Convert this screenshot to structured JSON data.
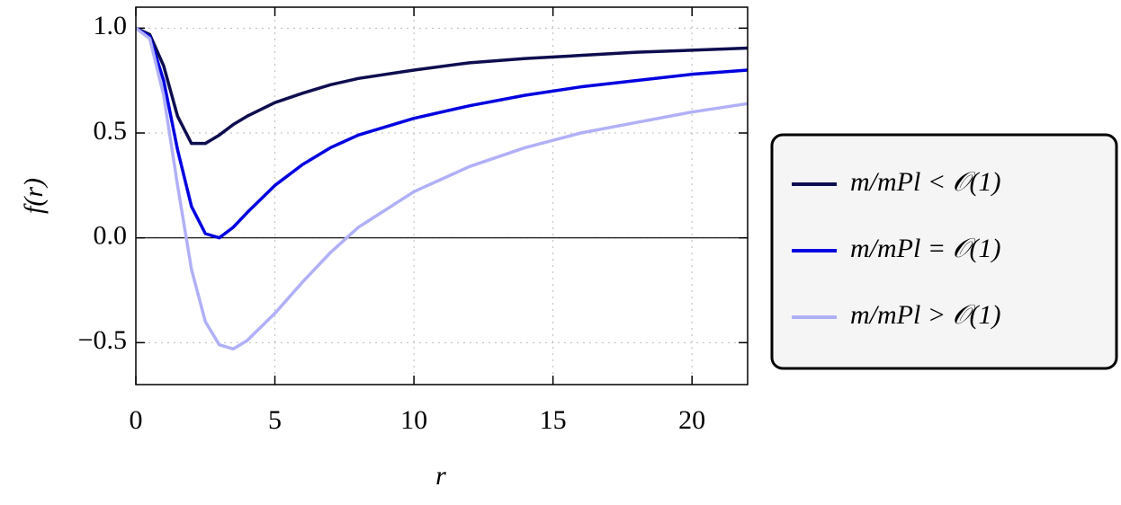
{
  "chart_data": {
    "type": "line",
    "xlabel": "r",
    "ylabel": "f(r)",
    "x": [
      0,
      0.5,
      1,
      1.5,
      2,
      2.5,
      3,
      3.5,
      4,
      5,
      6,
      7,
      8,
      10,
      12,
      14,
      16,
      18,
      20,
      22
    ],
    "series": [
      {
        "name": "m/mPl < 𝒪(1)",
        "color": "#0d0d50",
        "values": [
          1.0,
          0.97,
          0.82,
          0.58,
          0.45,
          0.45,
          0.49,
          0.54,
          0.58,
          0.645,
          0.69,
          0.73,
          0.76,
          0.8,
          0.835,
          0.855,
          0.87,
          0.885,
          0.895,
          0.905
        ]
      },
      {
        "name": "m/mPl = 𝒪(1)",
        "color": "#0000e0",
        "values": [
          1.0,
          0.96,
          0.75,
          0.42,
          0.15,
          0.02,
          0.0,
          0.05,
          0.12,
          0.25,
          0.35,
          0.43,
          0.49,
          0.57,
          0.63,
          0.68,
          0.72,
          0.75,
          0.78,
          0.8
        ]
      },
      {
        "name": "m/mPl > 𝒪(1)",
        "color": "#b0b0f8",
        "values": [
          1.0,
          0.95,
          0.68,
          0.25,
          -0.15,
          -0.4,
          -0.51,
          -0.53,
          -0.49,
          -0.36,
          -0.21,
          -0.07,
          0.05,
          0.22,
          0.34,
          0.43,
          0.5,
          0.55,
          0.6,
          0.64
        ]
      }
    ],
    "xlim": [
      0,
      22
    ],
    "xticks": [
      0,
      5,
      10,
      15,
      20
    ],
    "ylim": [
      -0.7,
      1.1
    ],
    "yticks": [
      {
        "value": -0.5,
        "label": "−0.5"
      },
      {
        "value": 0,
        "label": "0.0"
      },
      0.5,
      {
        "value": 1,
        "label": "1.0"
      }
    ],
    "grid": true,
    "reference_line": 0,
    "legend": "right"
  }
}
